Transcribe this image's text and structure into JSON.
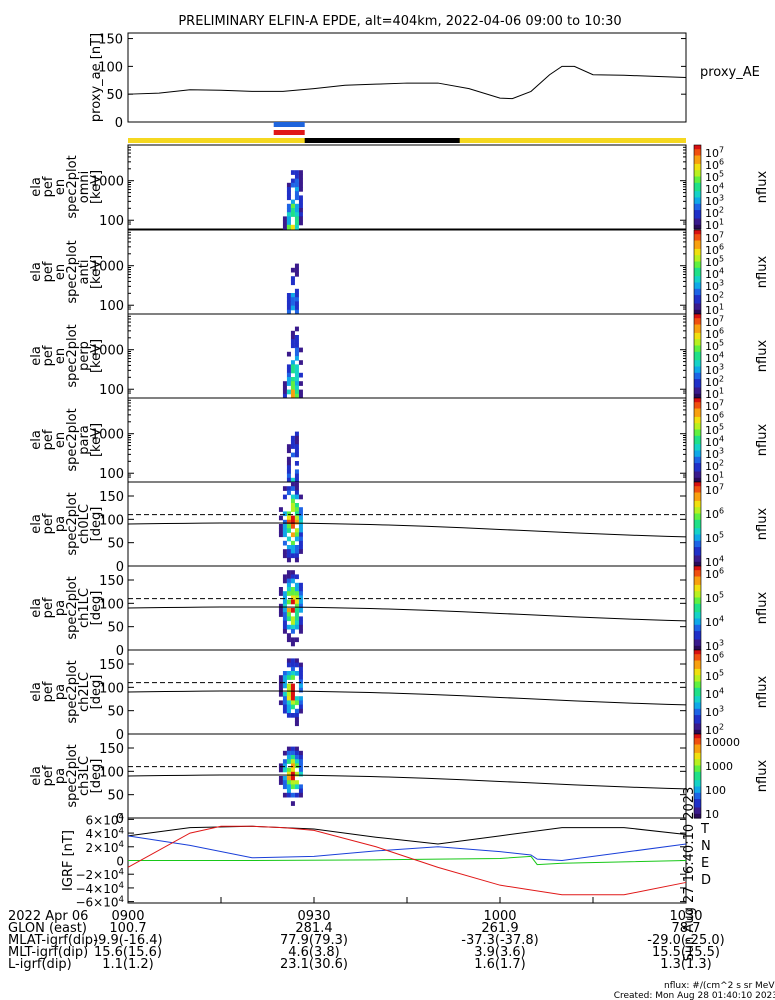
{
  "title": "PRELIMINARY ELFIN-A EPDE, alt=404km, 2022-04-06 09:00 to 10:30",
  "created": "Created: Mon Aug 28 01:40:10 2023",
  "colorbar_unit_note": "nflux: #/(cm^2 s sr MeV)",
  "side_stamp": "Sun Aug 27 16:40:10 2023",
  "proxy_ae": {
    "ylabel": "proxy_ae [nT]",
    "label": "proxy_AE",
    "yticks": [
      "150",
      "100",
      "50",
      "0"
    ],
    "ylim": [
      0,
      160
    ]
  },
  "panels": [
    {
      "ylabel": [
        "ela",
        "pef",
        "en",
        "spec2plot",
        "omni",
        "[keV]"
      ],
      "yticks": [
        "1000",
        "100"
      ],
      "cbar_ticks": [
        "10^7",
        "10^6",
        "10^5",
        "10^4",
        "10^3",
        "10^2",
        "10^1"
      ],
      "cbar_unit": "nflux"
    },
    {
      "ylabel": [
        "ela",
        "pef",
        "en",
        "spec2plot",
        "anti",
        "[keV]"
      ],
      "yticks": [
        "1000",
        "100"
      ],
      "cbar_ticks": [
        "10^7",
        "10^6",
        "10^5",
        "10^4",
        "10^3",
        "10^2",
        "10^1"
      ],
      "cbar_unit": "nflux"
    },
    {
      "ylabel": [
        "ela",
        "pef",
        "en",
        "spec2plot",
        "perp",
        "[keV]"
      ],
      "yticks": [
        "1000",
        "100"
      ],
      "cbar_ticks": [
        "10^7",
        "10^6",
        "10^5",
        "10^4",
        "10^3",
        "10^2",
        "10^1"
      ],
      "cbar_unit": "nflux"
    },
    {
      "ylabel": [
        "ela",
        "pef",
        "en",
        "spec2plot",
        "para",
        "[keV]"
      ],
      "yticks": [
        "1000",
        "100"
      ],
      "cbar_ticks": [
        "10^7",
        "10^6",
        "10^5",
        "10^4",
        "10^3",
        "10^2",
        "10^1"
      ],
      "cbar_unit": "nflux"
    },
    {
      "ylabel": [
        "ela",
        "pef",
        "pa",
        "spec2plot",
        "ch0LC",
        "[deg]"
      ],
      "yticks": [
        "150",
        "100",
        "50",
        "0"
      ],
      "cbar_ticks": [
        "10^7",
        "10^6",
        "10^5",
        "10^4"
      ],
      "cbar_unit": "nflux"
    },
    {
      "ylabel": [
        "ela",
        "pef",
        "pa",
        "spec2plot",
        "ch1LC",
        "[deg]"
      ],
      "yticks": [
        "150",
        "100",
        "50",
        "0"
      ],
      "cbar_ticks": [
        "10^6",
        "10^5",
        "10^4",
        "10^3"
      ],
      "cbar_unit": "nflux"
    },
    {
      "ylabel": [
        "ela",
        "pef",
        "pa",
        "spec2plot",
        "ch2LC",
        "[deg]"
      ],
      "yticks": [
        "150",
        "100",
        "50",
        "0"
      ],
      "cbar_ticks": [
        "10^6",
        "10^5",
        "10^4",
        "10^3",
        "10^2"
      ],
      "cbar_unit": "nflux"
    },
    {
      "ylabel": [
        "ela",
        "pef",
        "pa",
        "spec2plot",
        "ch3LC",
        "[deg]"
      ],
      "yticks": [
        "150",
        "100",
        "50",
        "0"
      ],
      "cbar_ticks": [
        "10000",
        "1000",
        "100",
        "10"
      ],
      "cbar_unit": "nflux"
    }
  ],
  "igrf": {
    "ylabel": "IGRF [nT]",
    "yticks": [
      "6×10^4",
      "4×10^4",
      "2×10^4",
      "0",
      "−2×10^4",
      "−4×10^4",
      "−6×10^4"
    ],
    "legend": [
      {
        "label": "T",
        "color": "#000000"
      },
      {
        "label": "N",
        "color": "#1a3fd8"
      },
      {
        "label": "E",
        "color": "#18c818"
      },
      {
        "label": "D",
        "color": "#e01818"
      }
    ]
  },
  "footer": {
    "rows": [
      {
        "label": "2022 Apr 06",
        "values": [
          "0900",
          "0930",
          "1000",
          "1030"
        ]
      },
      {
        "label": "GLON (east)",
        "values": [
          "100.7",
          "281.4",
          "261.9",
          "78.7"
        ]
      },
      {
        "label": "MLAT-igrf(dip)",
        "values": [
          "-9.9(-16.4)",
          "77.9(79.3)",
          "-37.3(-37.8)",
          "-29.0(-25.0)"
        ]
      },
      {
        "label": "MLT-igrf(dip)",
        "values": [
          "15.6(15.6)",
          "4.6(3.8)",
          "3.9(3.6)",
          "15.5(15.5)"
        ]
      },
      {
        "label": "L-igrf(dip)",
        "values": [
          "1.1(1.2)",
          "23.1(30.6)",
          "1.6(1.7)",
          "1.3(1.3)"
        ]
      }
    ]
  },
  "chart_data": {
    "type": "line",
    "title": "PRELIMINARY ELFIN-A EPDE, alt=404km, 2022-04-06 09:00 to 10:30",
    "x_ticks": [
      "0900",
      "0930",
      "1000",
      "1030"
    ],
    "proxy_ae_series": {
      "name": "proxy_AE",
      "x_min": [
        0,
        5,
        10,
        15,
        20,
        25,
        30,
        35,
        40,
        45,
        50,
        55,
        60,
        62,
        65,
        68,
        70,
        72,
        75,
        80,
        85,
        90
      ],
      "values": [
        50,
        52,
        58,
        57,
        55,
        55,
        60,
        66,
        68,
        70,
        70,
        60,
        43,
        42,
        55,
        85,
        100,
        100,
        85,
        84,
        82,
        80
      ]
    },
    "igrf_series": [
      {
        "name": "T",
        "x_min": [
          0,
          10,
          20,
          30,
          40,
          50,
          60,
          70,
          80,
          90
        ],
        "values": [
          36000,
          48000,
          50000,
          46000,
          34000,
          24000,
          36000,
          48000,
          48000,
          38000
        ]
      },
      {
        "name": "N",
        "x_min": [
          0,
          10,
          20,
          30,
          40,
          50,
          60,
          65,
          66,
          70,
          80,
          90
        ],
        "values": [
          36000,
          22000,
          4000,
          6000,
          14000,
          20000,
          13000,
          8000,
          2000,
          0,
          12000,
          24000
        ]
      },
      {
        "name": "E",
        "x_min": [
          0,
          20,
          40,
          50,
          60,
          65,
          66,
          70,
          80,
          90
        ],
        "values": [
          0,
          0,
          1000,
          2000,
          3000,
          6000,
          -6000,
          -4000,
          -2000,
          0
        ]
      },
      {
        "name": "D",
        "x_min": [
          0,
          10,
          15,
          20,
          25,
          30,
          40,
          50,
          60,
          70,
          80,
          90
        ],
        "values": [
          -10000,
          40000,
          50000,
          50000,
          48000,
          44000,
          20000,
          -10000,
          -36000,
          -50000,
          -50000,
          -32000
        ]
      }
    ],
    "pa_lines": {
      "dashed_deg": 110,
      "solid_deg_start": 90,
      "solid_deg_end": 70
    }
  },
  "colors": {
    "yellow": "#f5d820",
    "black": "#000000",
    "blue": "#1e64dc",
    "red": "#e01818"
  }
}
